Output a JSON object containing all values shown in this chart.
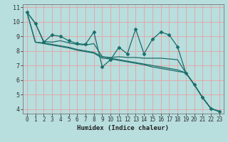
{
  "xlabel": "Humidex (Indice chaleur)",
  "background_color": "#b8dede",
  "grid_color": "#e8a0a0",
  "line_color": "#1a6e6a",
  "xlim": [
    -0.5,
    23.5
  ],
  "ylim": [
    3.7,
    11.2
  ],
  "yticks": [
    4,
    5,
    6,
    7,
    8,
    9,
    10,
    11
  ],
  "xticks": [
    0,
    1,
    2,
    3,
    4,
    5,
    6,
    7,
    8,
    9,
    10,
    11,
    12,
    13,
    14,
    15,
    16,
    17,
    18,
    19,
    20,
    21,
    22,
    23
  ],
  "series": [
    [
      10.65,
      9.9,
      8.6,
      9.1,
      9.0,
      8.7,
      8.5,
      8.45,
      9.3,
      6.9,
      7.4,
      8.25,
      7.8,
      9.5,
      7.8,
      8.8,
      9.3,
      9.1,
      8.3,
      6.5,
      5.7,
      4.8,
      4.05,
      3.85
    ],
    [
      10.65,
      9.9,
      8.65,
      8.6,
      8.7,
      8.55,
      8.45,
      8.4,
      8.5,
      7.6,
      7.55,
      7.6,
      7.55,
      7.55,
      7.5,
      7.5,
      7.5,
      7.45,
      7.4,
      6.5,
      5.7,
      4.8,
      4.05,
      3.85
    ],
    [
      10.65,
      8.6,
      8.55,
      8.45,
      8.35,
      8.25,
      8.1,
      8.0,
      7.9,
      7.6,
      7.5,
      7.4,
      7.3,
      7.2,
      7.1,
      7.0,
      6.9,
      6.8,
      6.7,
      6.5,
      5.7,
      4.8,
      4.05,
      3.85
    ],
    [
      10.65,
      8.6,
      8.5,
      8.4,
      8.3,
      8.2,
      8.05,
      7.95,
      7.85,
      7.5,
      7.45,
      7.35,
      7.25,
      7.15,
      7.05,
      6.9,
      6.8,
      6.7,
      6.6,
      6.5,
      5.7,
      4.8,
      4.05,
      3.85
    ]
  ],
  "marker_series": 0
}
